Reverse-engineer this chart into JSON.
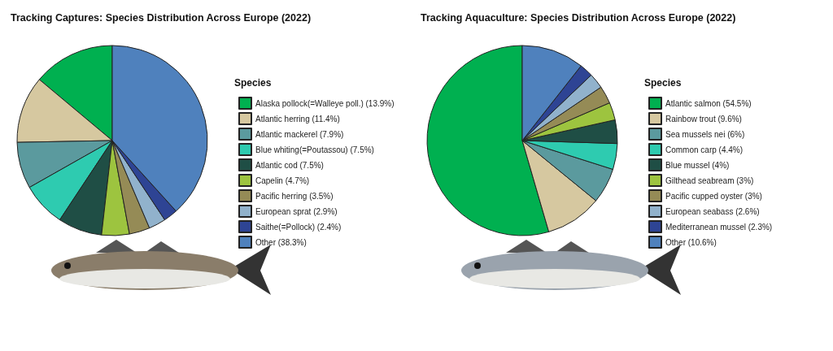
{
  "chart_data": [
    {
      "type": "pie",
      "title": "Tracking Captures: Species Distribution Across Europe (2022)",
      "legend_title": "Species",
      "legend": "right",
      "categories": [
        "Alaska pollock(=Walleye poll.) (13.9%)",
        "Atlantic herring (11.4%)",
        "Atlantic mackerel (7.9%)",
        "Blue whiting(=Poutassou) (7.5%)",
        "Atlantic cod (7.5%)",
        "Capelin (4.7%)",
        "Pacific herring (3.5%)",
        "European sprat (2.9%)",
        "Saithe(=Pollock) (2.4%)",
        "Other (38.3%)"
      ],
      "values": [
        13.9,
        11.4,
        7.9,
        7.5,
        7.5,
        4.7,
        3.5,
        2.9,
        2.4,
        38.3
      ],
      "colors": [
        "#00b050",
        "#d6c8a0",
        "#5b9a9e",
        "#2ecbb0",
        "#1f4e45",
        "#9dc43f",
        "#958b56",
        "#91b2cc",
        "#2e4494",
        "#4f81bd"
      ]
    },
    {
      "type": "pie",
      "title": "Tracking Aquaculture: Species Distribution Across Europe (2022)",
      "legend_title": "Species",
      "legend": "right",
      "categories": [
        "Atlantic salmon (54.5%)",
        "Rainbow trout (9.6%)",
        "Sea mussels nei (6%)",
        "Common carp (4.4%)",
        "Blue mussel (4%)",
        "Gilthead seabream (3%)",
        "Pacific cupped oyster (3%)",
        "European seabass (2.6%)",
        "Mediterranean mussel (2.3%)",
        "Other (10.6%)"
      ],
      "values": [
        54.5,
        9.6,
        6,
        4.4,
        4,
        3,
        3,
        2.6,
        2.3,
        10.6
      ],
      "colors": [
        "#00b050",
        "#d6c8a0",
        "#5b9a9e",
        "#2ecbb0",
        "#1f4e45",
        "#9dc43f",
        "#958b56",
        "#91b2cc",
        "#2e4494",
        "#4f81bd"
      ]
    }
  ]
}
